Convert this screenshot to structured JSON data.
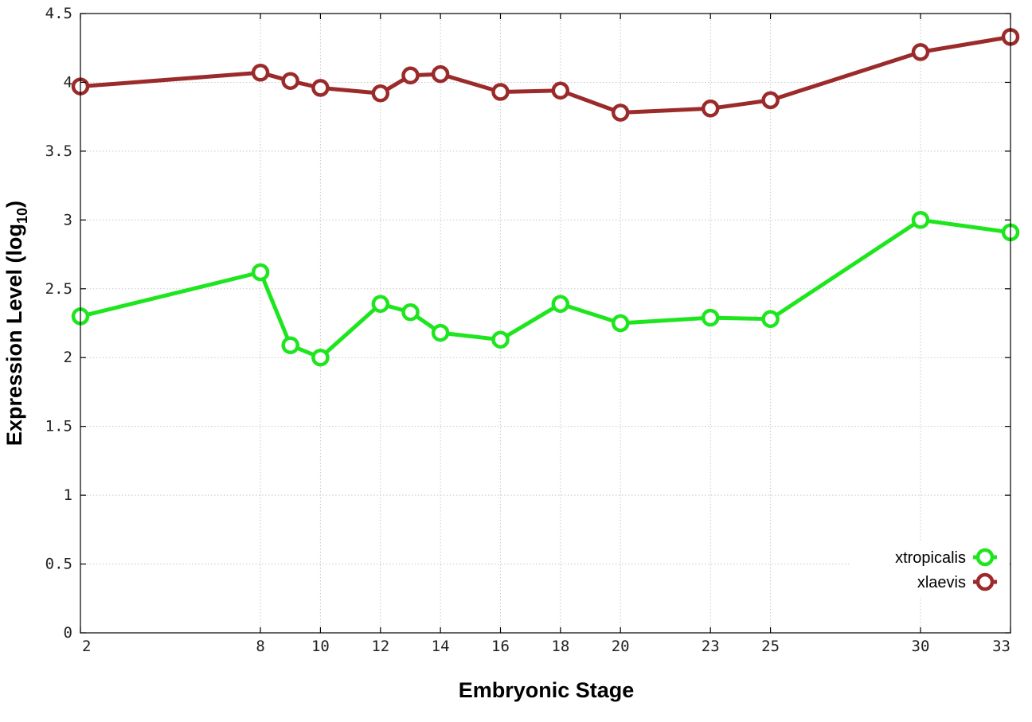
{
  "chart_data": {
    "type": "line",
    "xlabel": "Embryonic Stage",
    "ylabel": {
      "main": "Expression Level (log",
      "subscript": "10",
      "close": ")"
    },
    "xlim": [
      2,
      33
    ],
    "ylim": [
      0,
      4.5
    ],
    "x_ticks": [
      2,
      8,
      10,
      12,
      14,
      16,
      18,
      20,
      23,
      25,
      30,
      33
    ],
    "x_tick_labels": [
      "2",
      "8",
      "10",
      "12",
      "14",
      "16",
      "18",
      "20",
      "23",
      "25",
      "30",
      "33"
    ],
    "y_ticks": [
      0,
      0.5,
      1,
      1.5,
      2,
      2.5,
      3,
      3.5,
      4,
      4.5
    ],
    "y_tick_labels": [
      "0",
      "0.5",
      "1",
      "1.5",
      "2",
      "2.5",
      "3",
      "3.5",
      "4",
      "4.5"
    ],
    "grid": true,
    "legend_position": "bottom-right",
    "x": [
      2,
      8,
      9,
      10,
      12,
      13,
      14,
      16,
      18,
      20,
      23,
      25,
      30,
      33
    ],
    "series": [
      {
        "name": "xtropicalis",
        "color": "#1ee61e",
        "marker": "open-circle",
        "values": [
          2.3,
          2.62,
          2.09,
          2.0,
          2.39,
          2.33,
          2.18,
          2.13,
          2.39,
          2.25,
          2.29,
          2.28,
          3.0,
          2.91
        ]
      },
      {
        "name": "xlaevis",
        "color": "#9b2a2a",
        "marker": "open-circle",
        "values": [
          3.97,
          4.07,
          4.01,
          3.96,
          3.92,
          4.05,
          4.06,
          3.93,
          3.94,
          3.78,
          3.81,
          3.87,
          4.22,
          4.33
        ]
      }
    ]
  }
}
